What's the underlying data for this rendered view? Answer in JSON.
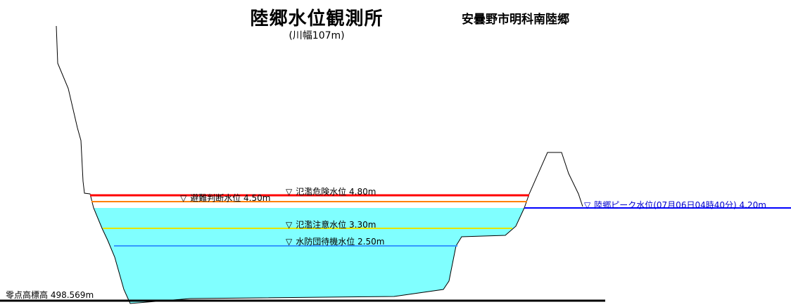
{
  "header": {
    "title": "陸郷水位観測所",
    "subtitle": "(川幅107m)",
    "location": "安曇野市明科南陸郷"
  },
  "levels": {
    "danger": {
      "label": "氾濫危険水位 4.80m",
      "value_m": 4.8,
      "color": "#ff0000"
    },
    "evacuation": {
      "label": "避難判断水位 4.50m",
      "value_m": 4.5,
      "color": "#ff8000"
    },
    "caution": {
      "label": "氾濫注意水位 3.30m",
      "value_m": 3.3,
      "color": "#e6e600"
    },
    "standby": {
      "label": "水防団待機水位 2.50m",
      "value_m": 2.5,
      "color": "#3399ff"
    },
    "peak": {
      "label": "陸郷ピーク水位(07月06日04時40分) 4.20m",
      "value_m": 4.2,
      "color": "#0000ff"
    }
  },
  "zero_point": {
    "label": "零点高標高 498.569m"
  },
  "colors": {
    "water": "#80ffff",
    "ground": "#000000"
  }
}
